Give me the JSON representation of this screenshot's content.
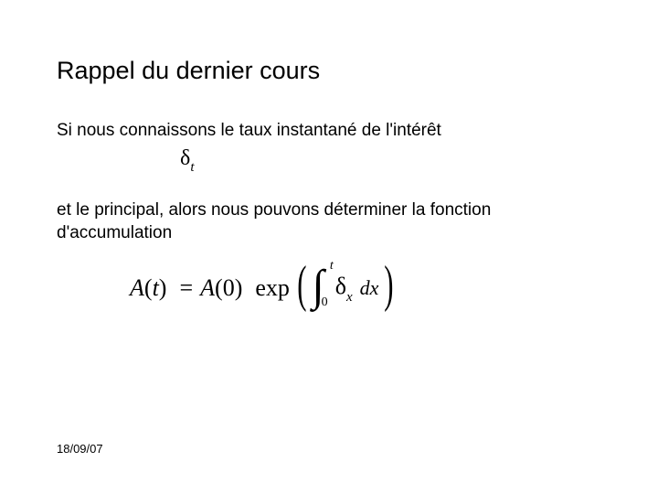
{
  "title": "Rappel du dernier cours",
  "para1": "Si nous connaissons le taux instantané de l'intérêt",
  "delta_t": {
    "sym": "δ",
    "sub": "t"
  },
  "para2": "et le principal, alors nous pouvons déterminer la fonction d'accumulation",
  "formula": {
    "A": "A",
    "t": "t",
    "eq": "=",
    "zero": "0",
    "exp": "exp",
    "lparen": "(",
    "rparen": ")",
    "int": "∫",
    "upper": "t",
    "lower": "0",
    "delta": "δ",
    "sub": "x",
    "dx": "dx"
  },
  "date": "18/09/07"
}
